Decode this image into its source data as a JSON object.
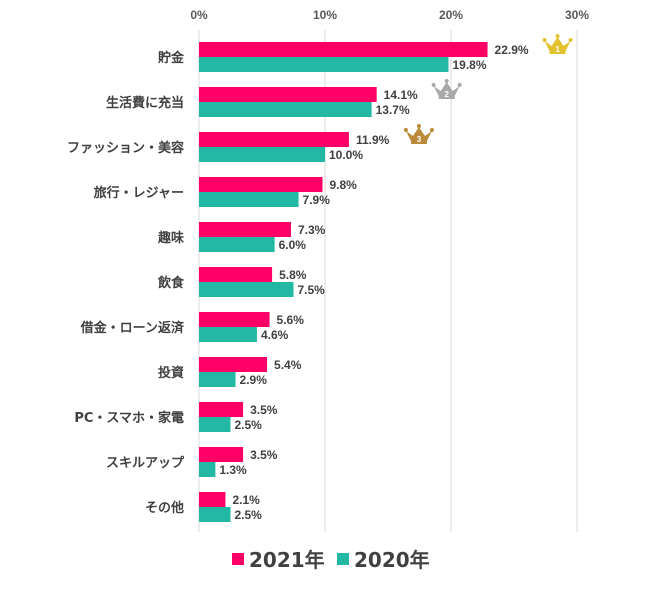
{
  "chart_data": {
    "type": "bar",
    "orientation": "horizontal",
    "xlim": [
      0,
      30
    ],
    "x_ticks": [
      "0%",
      "10%",
      "20%",
      "30%"
    ],
    "x_tick_values": [
      0,
      10,
      20,
      30
    ],
    "grid": true,
    "legend_position": "bottom",
    "categories": [
      "貯金",
      "生活費に充当",
      "ファッション・美容",
      "旅行・レジャー",
      "趣味",
      "飲食",
      "借金・ローン返済",
      "投資",
      "PC・スマホ・家電",
      "スキルアップ",
      "その他"
    ],
    "series": [
      {
        "name": "2021年",
        "color": "#ff0066",
        "values": [
          22.9,
          14.1,
          11.9,
          9.8,
          7.3,
          5.8,
          5.6,
          5.4,
          3.5,
          3.5,
          2.1
        ]
      },
      {
        "name": "2020年",
        "color": "#22b8a4",
        "values": [
          19.8,
          13.7,
          10.0,
          7.9,
          6.0,
          7.5,
          4.6,
          2.9,
          2.5,
          1.3,
          2.5
        ]
      }
    ],
    "value_label_suffix": "%",
    "rank_badges": [
      {
        "category_index": 0,
        "rank": "1",
        "icon": "crown-gold-icon",
        "color": "#e2c32e"
      },
      {
        "category_index": 1,
        "rank": "2",
        "icon": "crown-silver-icon",
        "color": "#a9a9a9"
      },
      {
        "category_index": 2,
        "rank": "3",
        "icon": "crown-bronze-icon",
        "color": "#b98b3a"
      }
    ]
  }
}
